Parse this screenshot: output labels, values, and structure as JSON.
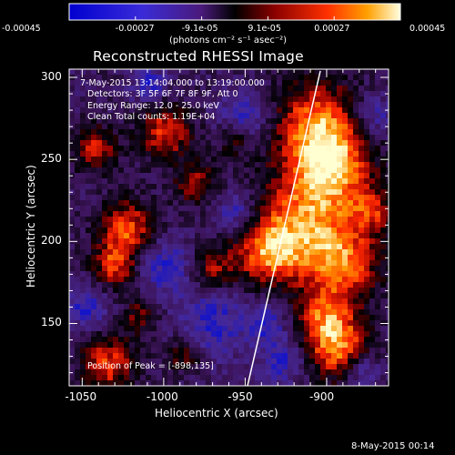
{
  "colorbar": {
    "ticks": [
      "-0.00045",
      "-0.00027",
      "-9.1e-05",
      "9.1e-05",
      "0.00027",
      "0.00045"
    ],
    "units": "(photons cm⁻² s⁻¹ asec⁻²)",
    "range": [
      -0.00045,
      0.00045
    ]
  },
  "plot": {
    "title": "Reconstructed RHESSI Image",
    "xlabel": "Heliocentric X (arcsec)",
    "ylabel": "Heliocentric Y (arcsec)",
    "x_ticks": [
      "-1050",
      "-1000",
      "-950",
      "-900"
    ],
    "y_ticks": [
      "300",
      "250",
      "200",
      "150"
    ],
    "xlim": [
      -1058,
      -862
    ],
    "ylim": [
      112,
      305
    ],
    "annotations": {
      "time": "7-May-2015 13:14:04.000 to 13:19:00.000",
      "detectors": "Detectors: 3F 5F 6F 7F 8F 9F, Att 0",
      "energy": "Energy Range: 12.0 - 25.0 keV",
      "clean": "Clean     Total counts: 1.19E+04",
      "peak": "Position of Peak = [-898,135]"
    }
  },
  "footer": {
    "date": "8-May-2015 00:14"
  }
}
